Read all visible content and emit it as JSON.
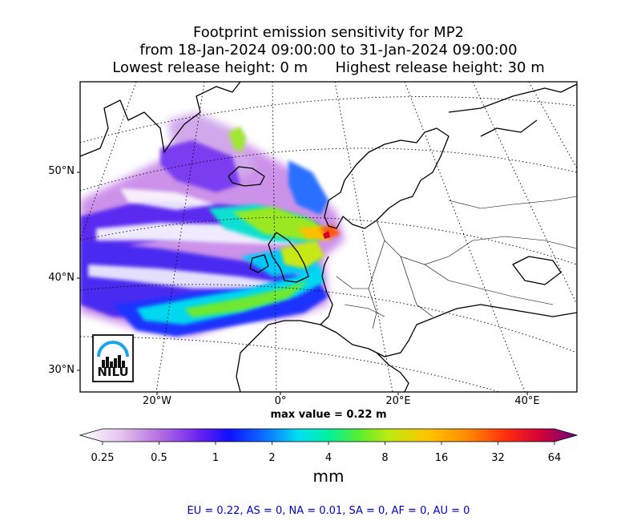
{
  "title": {
    "line1": "Footprint emission sensitivity for MP2",
    "line2": "from 18-Jan-2024 09:00:00 to 31-Jan-2024 09:00:00",
    "line3": "Lowest release height: 0 m      Highest release height: 30 m"
  },
  "map": {
    "lat_labels": [
      "50°N",
      "40°N",
      "30°N"
    ],
    "lon_labels": [
      "20°W",
      "0°",
      "20°E",
      "40°E"
    ],
    "max_value_text": "max value = 0.22 m",
    "logo_text": "NILU"
  },
  "colorbar": {
    "ticks": [
      "0.25",
      "0.5",
      "1",
      "2",
      "4",
      "8",
      "16",
      "32",
      "64"
    ],
    "unit": "mm",
    "colors": [
      "#f4e8f6",
      "#d8a6e6",
      "#9c4fe0",
      "#1a1aff",
      "#0aa0ff",
      "#00e5e5",
      "#55e855",
      "#c8e010",
      "#ffb000",
      "#ff6a00",
      "#ff1a1a",
      "#c8002a",
      "#7a1080"
    ]
  },
  "region_summary": {
    "text": "EU = 0.22,  AS = 0,  NA = 0.01,  SA = 0,  AF = 0,  AU = 0",
    "color": "#0000cc"
  }
}
